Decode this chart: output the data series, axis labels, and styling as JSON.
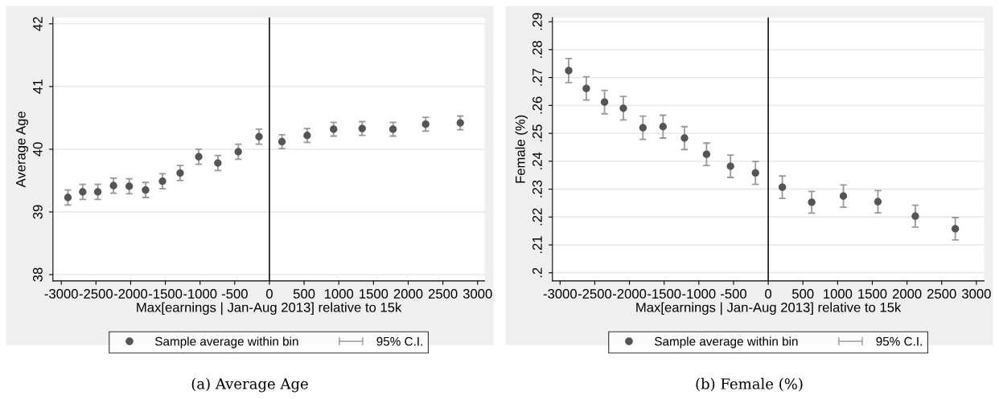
{
  "chart_data": [
    {
      "type": "scatter",
      "title": "(a) Average Age",
      "xlabel": "Max[earnings | Jan-Aug 2013] relative to 15k",
      "ylabel": "Average Age",
      "x": [
        -2904,
        -2691,
        -2474,
        -2247,
        -2021,
        -1785,
        -1541,
        -1287,
        -1019,
        -743,
        -449,
        -150,
        181,
        544,
        925,
        1337,
        1781,
        2252,
        2751
      ],
      "series": [
        {
          "name": "Sample average within bin",
          "color": "#555555",
          "values": [
            39.23,
            39.32,
            39.32,
            39.42,
            39.41,
            39.35,
            39.49,
            39.62,
            39.88,
            39.78,
            39.96,
            40.2,
            40.12,
            40.22,
            40.32,
            40.33,
            40.32,
            40.4,
            40.42
          ],
          "errors": [
            0.12,
            0.12,
            0.12,
            0.12,
            0.12,
            0.12,
            0.12,
            0.12,
            0.12,
            0.12,
            0.12,
            0.12,
            0.11,
            0.11,
            0.11,
            0.11,
            0.11,
            0.11,
            0.11
          ]
        }
      ],
      "annotations": [
        "95% C.I."
      ],
      "xlim": [
        -3120,
        3100
      ],
      "xticks": [
        -3000,
        -2500,
        -2000,
        -1500,
        -1000,
        -500,
        0,
        500,
        1000,
        1500,
        2000,
        2500,
        3000
      ],
      "ylim": [
        37.9,
        42.1
      ],
      "yticks": [
        38,
        39,
        40,
        41,
        42
      ],
      "ref_lines": [
        {
          "axis": "x",
          "value": 0,
          "color": "#000000"
        }
      ],
      "grid": "y",
      "legend": "bottom",
      "marker": "circle"
    },
    {
      "type": "scatter",
      "title": "(b) Female (%)",
      "xlabel": "Max[earnings | Jan-Aug 2013] relative to 15k",
      "ylabel": "Female (%)",
      "x": [
        -2876,
        -2622,
        -2359,
        -2088,
        -1806,
        -1516,
        -1207,
        -889,
        -544,
        -184,
        203,
        627,
        1083,
        1581,
        2120,
        2696
      ],
      "series": [
        {
          "name": "Sample average within bin",
          "color": "#555555",
          "values": [
            0.2725,
            0.2661,
            0.2612,
            0.259,
            0.252,
            0.2524,
            0.2483,
            0.2425,
            0.2382,
            0.2358,
            0.2307,
            0.2253,
            0.2275,
            0.2255,
            0.2203,
            0.2158
          ],
          "errors": [
            0.0043,
            0.0042,
            0.0042,
            0.0042,
            0.0042,
            0.0041,
            0.0041,
            0.004,
            0.004,
            0.0041,
            0.004,
            0.0039,
            0.004,
            0.004,
            0.0039,
            0.004
          ]
        }
      ],
      "annotations": [
        "95% C.I."
      ],
      "xlim": [
        -3110,
        3110
      ],
      "xticks": [
        -3000,
        -2500,
        -2000,
        -1500,
        -1000,
        -500,
        0,
        500,
        1000,
        1500,
        2000,
        2500,
        3000
      ],
      "ylim": [
        0.1971,
        0.2915
      ],
      "yticks": [
        {
          "value": 0.2,
          "label": ".2"
        },
        {
          "value": 0.21,
          "label": ".21"
        },
        {
          "value": 0.22,
          "label": ".22"
        },
        {
          "value": 0.23,
          "label": ".23"
        },
        {
          "value": 0.24,
          "label": ".24"
        },
        {
          "value": 0.25,
          "label": ".25"
        },
        {
          "value": 0.26,
          "label": ".26"
        },
        {
          "value": 0.27,
          "label": ".27"
        },
        {
          "value": 0.28,
          "label": ".28"
        },
        {
          "value": 0.29,
          "label": ".29"
        }
      ],
      "ref_lines": [
        {
          "axis": "x",
          "value": 0,
          "color": "#000000"
        }
      ],
      "grid": "y",
      "legend": "bottom",
      "marker": "circle"
    }
  ]
}
